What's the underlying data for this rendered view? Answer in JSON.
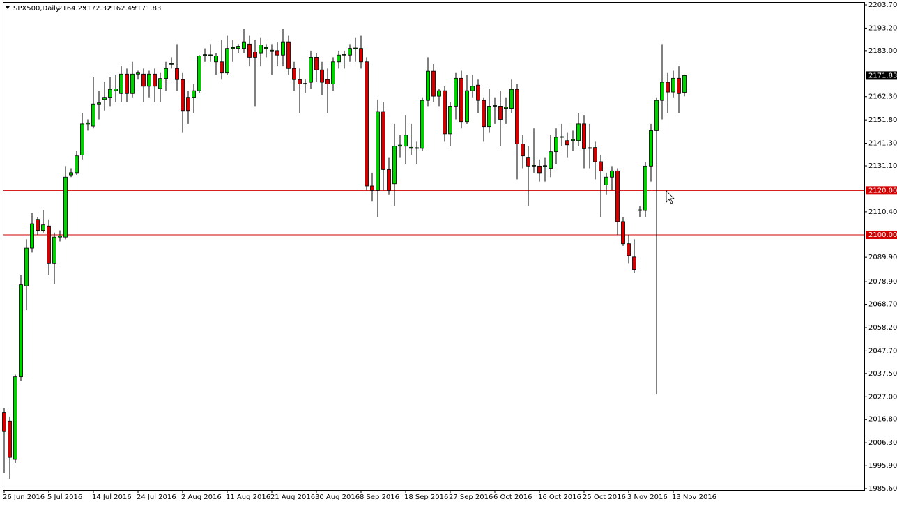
{
  "chart_data": {
    "type": "candlestick",
    "title": "SPX500,Daily",
    "categories": [
      "26 Jun 2016",
      null,
      null,
      null,
      null,
      null,
      null,
      null,
      "5 Jul 2016",
      null,
      null,
      null,
      null,
      null,
      null,
      null,
      "14 Jul 2016",
      null,
      null,
      null,
      null,
      null,
      null,
      null,
      "24 Jul 2016",
      null,
      null,
      null,
      null,
      null,
      null,
      null,
      "2 Aug 2016",
      null,
      null,
      null,
      null,
      null,
      null,
      null,
      "11 Aug 2016",
      null,
      null,
      null,
      null,
      null,
      null,
      null,
      "21 Aug 2016",
      null,
      null,
      null,
      null,
      null,
      null,
      null,
      "30 Aug 2016",
      null,
      null,
      null,
      null,
      null,
      null,
      null,
      "8 Sep 2016",
      null,
      null,
      null,
      null,
      null,
      null,
      null,
      "18 Sep 2016",
      null,
      null,
      null,
      null,
      null,
      null,
      null,
      "27 Sep 2016",
      null,
      null,
      null,
      null,
      null,
      null,
      null,
      "6 Oct 2016",
      null,
      null,
      null,
      null,
      null,
      null,
      null,
      "16 Oct 2016",
      null,
      null,
      null,
      null,
      null,
      null,
      null,
      "25 Oct 2016",
      null,
      null,
      null,
      null,
      null,
      null,
      null,
      "3 Nov 2016",
      null,
      null,
      null,
      null,
      null,
      null,
      null,
      "13 Nov 2016",
      null,
      null
    ],
    "open": [
      2020,
      2016,
      1998.8,
      2036,
      2077,
      2094,
      2107,
      2102,
      2104,
      2087,
      2099,
      2099,
      2127,
      2128,
      2136,
      2150,
      2149,
      2159,
      2161,
      2162,
      2165,
      2163.7,
      2172.5,
      2163.7,
      2172.5,
      2172.5,
      2167,
      2172.5,
      2166,
      2170.5,
      2177,
      2175,
      2170,
      2162,
      2162,
      2165,
      2181,
      2181,
      2178,
      2178,
      2173,
      2184,
      2184,
      2184,
      2186,
      2182.5,
      2182,
      2184,
      2183,
      2183,
      2181,
      2187,
      2175,
      2170,
      2168,
      2168.8,
      2180,
      2174.4,
      2170,
      2168,
      2178,
      2181,
      2181,
      2184,
      2184,
      2178,
      2122,
      2120,
      2155.6,
      2129.4,
      2123,
      2140,
      2140,
      2139,
      2139,
      2139,
      2160.6,
      2173.8,
      2162.5,
      2165,
      2145.6,
      2158,
      2170.6,
      2151,
      2165,
      2167.5,
      2160.6,
      2148.8,
      2158,
      2158,
      2157,
      2157,
      2165.6,
      2141,
      2135,
      2131,
      2131,
      2131,
      2130,
      2137.5,
      2144,
      2142.5,
      2142.5,
      2142.5,
      2150,
      2139,
      2139.4,
      2133,
      2122.5,
      2126,
      2128.8,
      2106,
      2096,
      2090,
      2111,
      2111,
      2131,
      2147,
      2160.6,
      2168.8,
      2164.4,
      2170.6,
      2164.25
    ],
    "high": [
      2022,
      2018,
      2037,
      2082,
      2098,
      2110,
      2108,
      2111,
      2107,
      2101,
      2102,
      2131,
      2130,
      2138,
      2155,
      2152,
      2171,
      2165,
      2169,
      2171,
      2172,
      2176,
      2175,
      2178,
      2174,
      2175,
      2174,
      2175,
      2173,
      2178,
      2180,
      2186,
      2173,
      2165,
      2168,
      2181,
      2184,
      2186,
      2182,
      2188,
      2190,
      2188,
      2186,
      2193,
      2190,
      2188,
      2189,
      2186,
      2186,
      2187,
      2193,
      2190,
      2178,
      2175,
      2170,
      2183,
      2182,
      2178,
      2175,
      2180,
      2183,
      2183,
      2186,
      2189,
      2190,
      2180,
      2128,
      2161,
      2160,
      2135,
      2150,
      2145,
      2154,
      2150,
      2142,
      2162,
      2180,
      2177,
      2166,
      2167,
      2160,
      2173,
      2174,
      2172,
      2172,
      2170,
      2162,
      2166,
      2162,
      2165,
      2162,
      2170,
      2168,
      2145,
      2140,
      2148,
      2134,
      2135,
      2145,
      2148,
      2150,
      2146,
      2147,
      2155,
      2154,
      2150,
      2142,
      2136,
      2128,
      2131,
      2130,
      2108,
      2100,
      2098,
      2113,
      2133,
      2150,
      2162,
      2186,
      2173,
      2174,
      2176,
      2172.32
    ],
    "low": [
      1992.5,
      1990,
      1997,
      2034,
      2066,
      2092,
      2100,
      2101,
      2082,
      2078,
      2097,
      2098,
      2126,
      2127,
      2134,
      2147,
      2148,
      2152,
      2156,
      2158,
      2160,
      2160,
      2160,
      2162,
      2170,
      2160,
      2162,
      2160,
      2160,
      2165,
      2175,
      2165,
      2146,
      2150,
      2155,
      2164,
      2178,
      2178,
      2172,
      2170,
      2172,
      2178,
      2182,
      2182,
      2176,
      2158,
      2176,
      2180,
      2172,
      2176,
      2176,
      2172,
      2165,
      2155,
      2164,
      2166,
      2169,
      2163,
      2155,
      2165,
      2175,
      2175,
      2178,
      2178,
      2175,
      2120,
      2115,
      2108,
      2120,
      2118,
      2113,
      2135,
      2132,
      2136,
      2132,
      2138,
      2158,
      2160,
      2158,
      2142,
      2140,
      2152,
      2148,
      2150,
      2162,
      2155,
      2142,
      2146,
      2150,
      2140,
      2150,
      2155,
      2125,
      2130,
      2113,
      2128,
      2124,
      2124,
      2126,
      2132,
      2140,
      2135,
      2138,
      2140,
      2130,
      2130,
      2125,
      2108,
      2118,
      2120,
      2100,
      2095,
      2087,
      2083,
      2108,
      2108,
      2124,
      2028,
      2152,
      2155,
      2162,
      2155,
      2162.45
    ],
    "close": [
      2011.3,
      1999.7,
      2036,
      2077.5,
      2094,
      2105,
      2102,
      2104.5,
      2087,
      2099,
      2099.5,
      2126,
      2128,
      2135.6,
      2150,
      2150.5,
      2159,
      2159.5,
      2162,
      2165.6,
      2165.8,
      2172.5,
      2163.7,
      2172.5,
      2173,
      2167,
      2172.5,
      2167,
      2170.5,
      2175,
      2177.2,
      2170,
      2156,
      2156,
      2165,
      2180.6,
      2181.2,
      2181.1,
      2180.6,
      2173,
      2184,
      2184.4,
      2185,
      2187,
      2180,
      2180,
      2185.6,
      2184.4,
      2183.2,
      2181,
      2187,
      2175,
      2170,
      2168,
      2168.3,
      2180,
      2174.4,
      2168.8,
      2168,
      2178,
      2181,
      2181.3,
      2184,
      2184.2,
      2178,
      2122,
      2120,
      2155.6,
      2129.4,
      2120,
      2140,
      2140.5,
      2145,
      2139.5,
      2139.3,
      2160.6,
      2173.8,
      2162.5,
      2165,
      2145.6,
      2158,
      2170.6,
      2151,
      2165,
      2167,
      2160.6,
      2148.8,
      2158,
      2158.3,
      2152,
      2157.5,
      2165.6,
      2141,
      2135.6,
      2131,
      2131.3,
      2128,
      2131.2,
      2137.5,
      2144,
      2144.3,
      2140.6,
      2143,
      2150,
      2138.8,
      2139.3,
      2133,
      2128.8,
      2126,
      2128.8,
      2106,
      2096,
      2090.6,
      2084.4,
      2111.3,
      2131,
      2147,
      2160.6,
      2168.8,
      2164.4,
      2170.6,
      2163.7,
      2171.83
    ],
    "up_color": "#00d200",
    "down_color": "#d20000",
    "ylim": [
      1985.6,
      2203.7
    ],
    "yticks": [
      {
        "value": 2203.7,
        "label": "2203.70"
      },
      {
        "value": 2193.2,
        "label": "2193.20"
      },
      {
        "value": 2183,
        "label": "2183.00"
      },
      {
        "value": 2162.3,
        "label": "2162.30"
      },
      {
        "value": 2151.8,
        "label": "2151.80"
      },
      {
        "value": 2141.3,
        "label": "2141.30"
      },
      {
        "value": 2131.1,
        "label": "2131.10"
      },
      {
        "value": 2110.4,
        "label": "2110.40"
      },
      {
        "value": 2089.9,
        "label": "2089.90"
      },
      {
        "value": 2078.9,
        "label": "2078.90"
      },
      {
        "value": 2068.7,
        "label": "2068.70"
      },
      {
        "value": 2058.2,
        "label": "2058.20"
      },
      {
        "value": 2047.7,
        "label": "2047.70"
      },
      {
        "value": 2037.5,
        "label": "2037.50"
      },
      {
        "value": 2027,
        "label": "2027.00"
      },
      {
        "value": 2016.8,
        "label": "2016.80"
      },
      {
        "value": 2006.3,
        "label": "2006.30"
      },
      {
        "value": 1995.9,
        "label": "1995.90"
      },
      {
        "value": 1985.6,
        "label": "1985.60"
      }
    ],
    "hlines": [
      {
        "value": 2120,
        "label": "2120.00"
      },
      {
        "value": 2100,
        "label": "2100.00"
      }
    ],
    "hline_color": "#d20000"
  }
}
